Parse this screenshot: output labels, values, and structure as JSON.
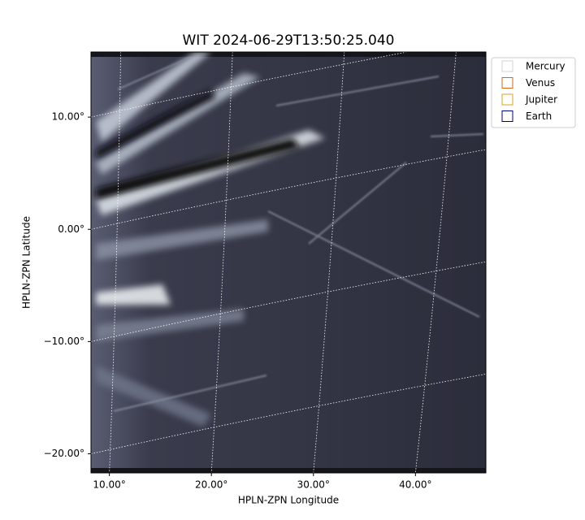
{
  "chart_data": {
    "type": "image",
    "title": "WIT 2024-06-29T13:50:25.040",
    "xlabel": "HPLN-ZPN Longitude",
    "ylabel": "HPLN-ZPN Latitude",
    "xlim": [
      8.2,
      46.9
    ],
    "ylim": [
      -21.7,
      15.8
    ],
    "xticks": [
      {
        "value": 10,
        "label": "10.00°"
      },
      {
        "value": 20,
        "label": "20.00°"
      },
      {
        "value": 30,
        "label": "30.00°"
      },
      {
        "value": 40,
        "label": "40.00°"
      }
    ],
    "yticks": [
      {
        "value": 10,
        "label": "10.00°"
      },
      {
        "value": 0,
        "label": "0.00°"
      },
      {
        "value": -10,
        "label": "−10.00°"
      },
      {
        "value": -20,
        "label": "−20.00°"
      }
    ],
    "grid": true,
    "legend": "upper right outside",
    "series": [
      {
        "name": "Mercury",
        "color": "#d3d3d3"
      },
      {
        "name": "Venus",
        "color": "#d2691e"
      },
      {
        "name": "Jupiter",
        "color": "#daa520"
      },
      {
        "name": "Earth",
        "color": "#000080"
      }
    ]
  }
}
